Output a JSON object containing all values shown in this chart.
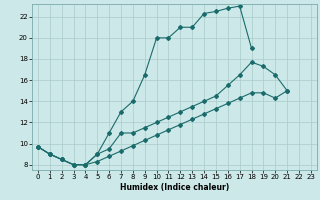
{
  "xlabel": "Humidex (Indice chaleur)",
  "bg_color": "#cde8e8",
  "grid_color": "#aacccc",
  "line_color": "#1a6b6b",
  "xlim": [
    -0.5,
    23.5
  ],
  "ylim": [
    7.5,
    23.2
  ],
  "yticks": [
    8,
    10,
    12,
    14,
    16,
    18,
    20,
    22
  ],
  "xticks": [
    0,
    1,
    2,
    3,
    4,
    5,
    6,
    7,
    8,
    9,
    10,
    11,
    12,
    13,
    14,
    15,
    16,
    17,
    18,
    19,
    20,
    21,
    22,
    23
  ],
  "line1_x": [
    0,
    1,
    2,
    3,
    4,
    5,
    6,
    7,
    8,
    9,
    10,
    11,
    12,
    13,
    14,
    15,
    16,
    17,
    18
  ],
  "line1_y": [
    9.7,
    9.0,
    8.5,
    8.0,
    8.0,
    9.0,
    11.0,
    13.0,
    14.0,
    16.5,
    20.0,
    20.0,
    21.0,
    21.0,
    22.3,
    22.5,
    22.8,
    23.0,
    19.0
  ],
  "line2_x": [
    0,
    1,
    2,
    3,
    4,
    5,
    6,
    7,
    8,
    9,
    10,
    11,
    12,
    13,
    14,
    15,
    16,
    17,
    18,
    19,
    20,
    21
  ],
  "line2_y": [
    9.7,
    9.0,
    8.5,
    8.0,
    8.0,
    9.0,
    9.5,
    11.0,
    11.0,
    11.5,
    12.0,
    12.5,
    13.0,
    13.5,
    14.0,
    14.5,
    15.5,
    16.5,
    17.7,
    17.3,
    16.5,
    15.0
  ],
  "line3_x": [
    0,
    1,
    2,
    3,
    4,
    5,
    6,
    7,
    8,
    9,
    10,
    11,
    12,
    13,
    14,
    15,
    16,
    17,
    18,
    19,
    20,
    21
  ],
  "line3_y": [
    9.7,
    9.0,
    8.5,
    8.0,
    8.0,
    8.3,
    8.8,
    9.3,
    9.8,
    10.3,
    10.8,
    11.3,
    11.8,
    12.3,
    12.8,
    13.3,
    13.8,
    14.3,
    14.8,
    14.8,
    14.3,
    15.0
  ]
}
